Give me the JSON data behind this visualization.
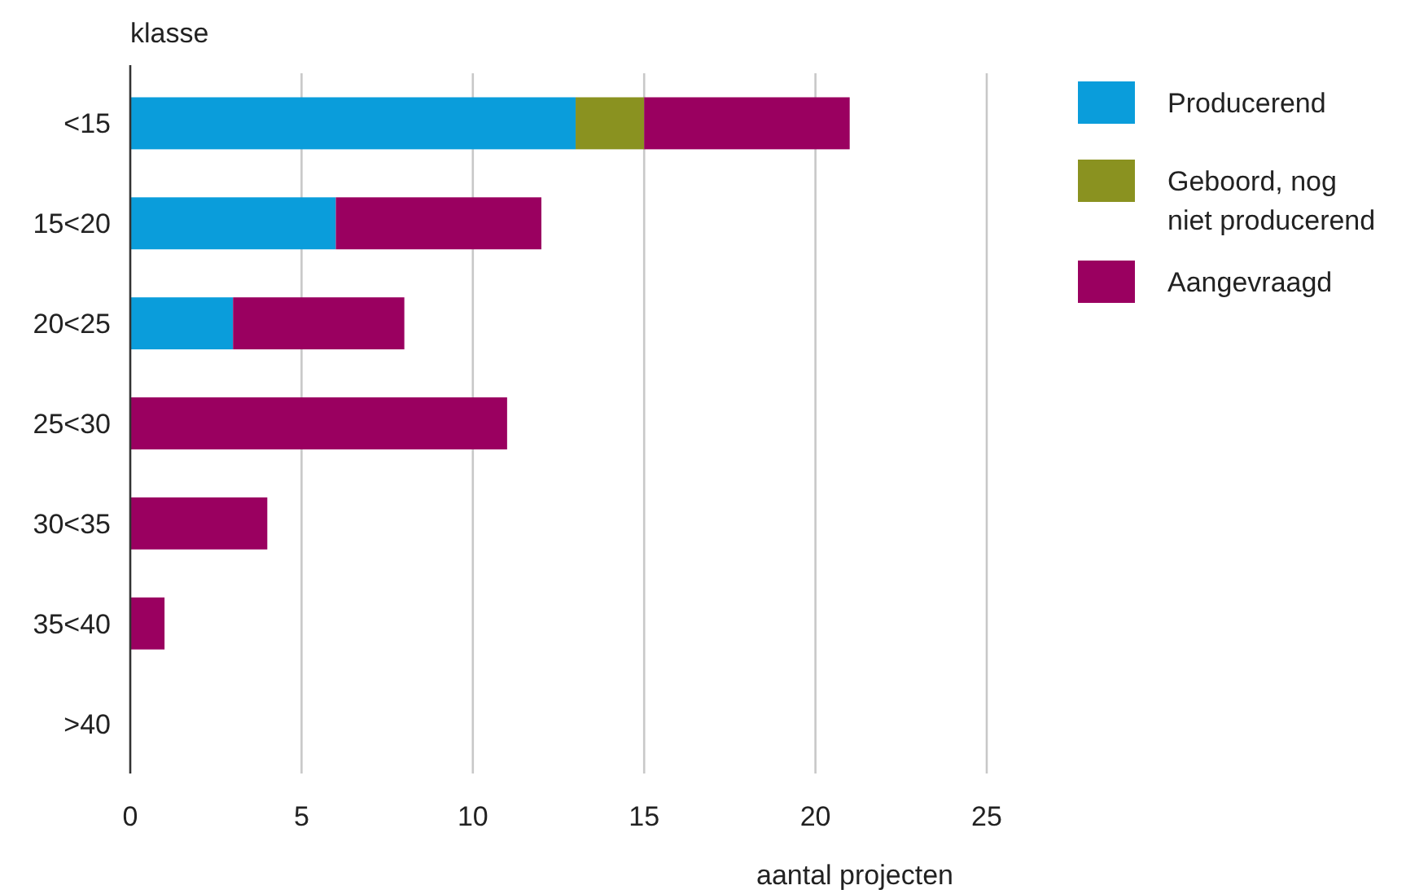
{
  "chart_data": {
    "type": "bar",
    "orientation": "horizontal",
    "stacked": true,
    "ylabel": "klasse",
    "xlabel": "aantal projecten",
    "categories": [
      "<15",
      "15<20",
      "20<25",
      "25<30",
      "30<35",
      "35<40",
      ">40"
    ],
    "series": [
      {
        "name": "Producerend",
        "color": "#0a9ddb",
        "values": [
          13,
          6,
          3,
          0,
          0,
          0,
          0
        ]
      },
      {
        "name": "Geboord, nog niet producerend",
        "color": "#8a9220",
        "values": [
          2,
          0,
          0,
          0,
          0,
          0,
          0
        ]
      },
      {
        "name": "Aangevraagd",
        "color": "#9a0060",
        "values": [
          6,
          6,
          5,
          11,
          4,
          1,
          0
        ]
      }
    ],
    "xlim": [
      0,
      25
    ],
    "xticks": [
      0,
      5,
      10,
      15,
      20,
      25
    ],
    "grid": "x",
    "legend": "right"
  }
}
